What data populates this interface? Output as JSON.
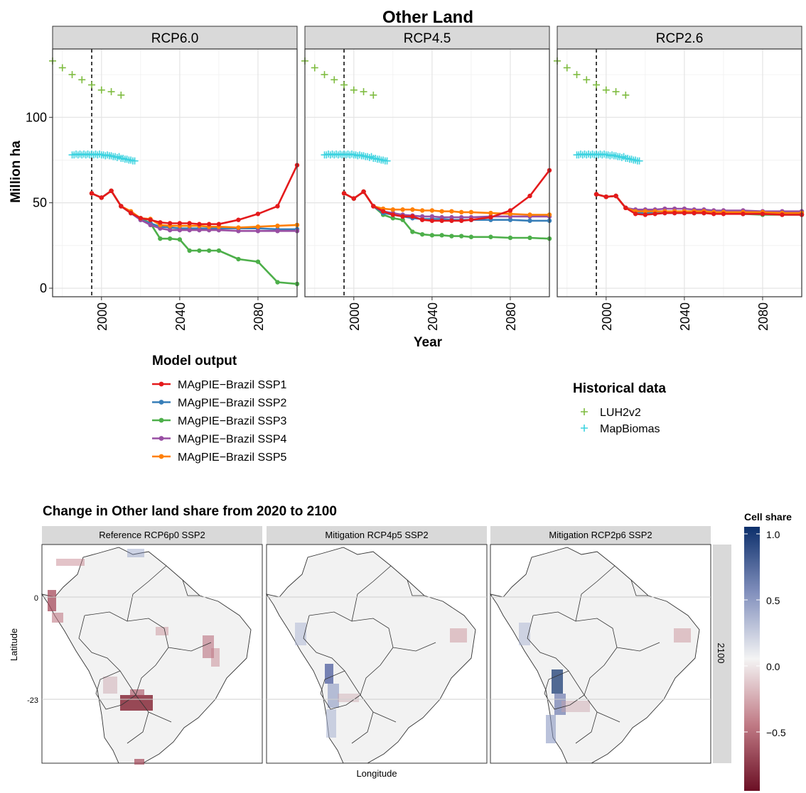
{
  "top": {
    "title": "Other Land",
    "xlabel": "Year",
    "ylabel": "Million ha",
    "legend_model_title": "Model output",
    "legend_hist_title": "Historical data"
  },
  "bottom": {
    "title": "Change in Other land share from 2020 to 2100",
    "xlabel": "Longitude",
    "ylabel": "Latitude",
    "row_strip": "2100",
    "y_ticks": [
      "0",
      "-23"
    ],
    "colorbar_title": "Cell share",
    "colorbar_ticks": [
      "1.0",
      "0.5",
      "0.0",
      "−0.5"
    ]
  },
  "colors": {
    "SSP1": "#e41a1c",
    "SSP2": "#377eb8",
    "SSP3": "#4daf4a",
    "SSP4": "#984ea3",
    "SSP5": "#ff7f00",
    "LUH2v2": "#7fbc41",
    "MapBiomas": "#3fd3e0",
    "map_neg": "#7f1d2d",
    "map_pos": "#0c2f6b"
  },
  "chart_data": [
    {
      "type": "line",
      "title": "Other Land",
      "xlabel": "Year",
      "ylabel": "Million ha",
      "xlim": [
        1975,
        2100
      ],
      "ylim": [
        -5,
        140
      ],
      "x_ticks": [
        2000,
        2040,
        2080
      ],
      "y_ticks": [
        0,
        50,
        100
      ],
      "reference_line_x": 1995,
      "grid": true,
      "facets": [
        "RCP6.0",
        "RCP4.5",
        "RCP2.6"
      ],
      "legend_groups": [
        {
          "title": "Model output",
          "entries": [
            "MAgPIE−Brazil SSP1",
            "MAgPIE−Brazil SSP2",
            "MAgPIE−Brazil SSP3",
            "MAgPIE−Brazil SSP4",
            "MAgPIE−Brazil SSP5"
          ]
        },
        {
          "title": "Historical data",
          "entries": [
            "LUH2v2",
            "MapBiomas"
          ]
        }
      ],
      "historical": {
        "LUH2v2": {
          "x": [
            1975,
            1980,
            1985,
            1990,
            1995,
            2000,
            2005,
            2010
          ],
          "y": [
            133,
            129,
            125,
            122,
            119,
            116,
            115,
            113
          ]
        },
        "MapBiomas": {
          "x": [
            1985,
            1986,
            1987,
            1988,
            1989,
            1990,
            1991,
            1992,
            1993,
            1994,
            1995,
            1996,
            1997,
            1998,
            1999,
            2000,
            2001,
            2002,
            2003,
            2004,
            2005,
            2006,
            2007,
            2008,
            2009,
            2010,
            2011,
            2012,
            2013,
            2014,
            2015,
            2016,
            2017
          ],
          "y": [
            78,
            78,
            78.5,
            78,
            78.5,
            78,
            78.5,
            78,
            78.5,
            78,
            78.5,
            78,
            78.5,
            78,
            78.5,
            78,
            78,
            77.5,
            78,
            77.5,
            77.5,
            77,
            77,
            76.5,
            77,
            76,
            76,
            75.5,
            75.5,
            75,
            75,
            74.5,
            74.5
          ]
        }
      },
      "panels": [
        {
          "name": "RCP6.0",
          "series": [
            {
              "name": "MAgPIE−Brazil SSP1",
              "color": "#e41a1c",
              "x": [
                1995,
                2000,
                2005,
                2010,
                2015,
                2020,
                2025,
                2030,
                2035,
                2040,
                2045,
                2050,
                2055,
                2060,
                2070,
                2080,
                2090,
                2100
              ],
              "y": [
                55.5,
                53,
                57,
                48,
                44,
                41,
                40,
                38.5,
                38,
                38,
                38,
                37.5,
                37.5,
                37.5,
                40,
                43.5,
                48,
                72
              ]
            },
            {
              "name": "MAgPIE−Brazil SSP2",
              "color": "#377eb8",
              "x": [
                1995,
                2000,
                2005,
                2010,
                2015,
                2020,
                2025,
                2030,
                2035,
                2040,
                2045,
                2050,
                2055,
                2060,
                2070,
                2080,
                2090,
                2100
              ],
              "y": [
                55.5,
                53,
                57,
                48,
                44,
                40,
                38,
                36,
                35.5,
                35,
                35,
                35,
                35,
                35,
                35,
                35,
                34.5,
                34.5
              ]
            },
            {
              "name": "MAgPIE−Brazil SSP3",
              "color": "#4daf4a",
              "x": [
                1995,
                2000,
                2005,
                2010,
                2015,
                2020,
                2025,
                2030,
                2035,
                2040,
                2045,
                2050,
                2055,
                2060,
                2070,
                2080,
                2090,
                2100
              ],
              "y": [
                55.5,
                53,
                57,
                48,
                44,
                41,
                38,
                29,
                29,
                28.5,
                22,
                22,
                22,
                22,
                17,
                15.5,
                3.5,
                2.5
              ]
            },
            {
              "name": "MAgPIE−Brazil SSP4",
              "color": "#984ea3",
              "x": [
                1995,
                2000,
                2005,
                2010,
                2015,
                2020,
                2025,
                2030,
                2035,
                2040,
                2045,
                2050,
                2055,
                2060,
                2070,
                2080,
                2090,
                2100
              ],
              "y": [
                55.5,
                53,
                57,
                48,
                44,
                40,
                37,
                35,
                34,
                34,
                34,
                34,
                34,
                34,
                33.5,
                33.5,
                33.5,
                33.5
              ]
            },
            {
              "name": "MAgPIE−Brazil SSP5",
              "color": "#ff7f00",
              "x": [
                1995,
                2000,
                2005,
                2010,
                2015,
                2020,
                2025,
                2030,
                2035,
                2040,
                2045,
                2050,
                2055,
                2060,
                2070,
                2080,
                2090,
                2100
              ],
              "y": [
                55.5,
                53,
                57,
                48,
                45,
                41,
                40.5,
                37,
                36.5,
                36.5,
                36.5,
                36.5,
                36,
                36,
                35.5,
                36,
                36.5,
                37
              ]
            }
          ]
        },
        {
          "name": "RCP4.5",
          "series": [
            {
              "name": "MAgPIE−Brazil SSP1",
              "color": "#e41a1c",
              "x": [
                1995,
                2000,
                2005,
                2010,
                2015,
                2020,
                2025,
                2030,
                2035,
                2040,
                2045,
                2050,
                2055,
                2060,
                2070,
                2080,
                2090,
                2100
              ],
              "y": [
                55.5,
                52.5,
                56.5,
                48,
                45,
                43,
                42,
                42,
                40,
                39.5,
                39.5,
                39.5,
                39.5,
                40,
                41.5,
                45.5,
                54,
                69
              ]
            },
            {
              "name": "MAgPIE−Brazil SSP2",
              "color": "#377eb8",
              "x": [
                1995,
                2000,
                2005,
                2010,
                2015,
                2020,
                2025,
                2030,
                2035,
                2040,
                2045,
                2050,
                2055,
                2060,
                2070,
                2080,
                2090,
                2100
              ],
              "y": [
                55.5,
                52.5,
                56.5,
                48,
                44,
                43,
                42,
                41,
                40.5,
                40.5,
                40.5,
                40,
                40,
                40,
                40,
                40,
                39.5,
                39.5
              ]
            },
            {
              "name": "MAgPIE−Brazil SSP3",
              "color": "#4daf4a",
              "x": [
                1995,
                2000,
                2005,
                2010,
                2015,
                2020,
                2025,
                2030,
                2035,
                2040,
                2045,
                2050,
                2055,
                2060,
                2070,
                2080,
                2090,
                2100
              ],
              "y": [
                55.5,
                52.5,
                56.5,
                48,
                43,
                41,
                40,
                33,
                31.5,
                31,
                31,
                30.5,
                30.5,
                30,
                30,
                29.5,
                29.5,
                29
              ]
            },
            {
              "name": "MAgPIE−Brazil SSP4",
              "color": "#984ea3",
              "x": [
                1995,
                2000,
                2005,
                2010,
                2015,
                2020,
                2025,
                2030,
                2035,
                2040,
                2045,
                2050,
                2055,
                2060,
                2070,
                2080,
                2090,
                2100
              ],
              "y": [
                55.5,
                52.5,
                56.5,
                48,
                45,
                44,
                43,
                42.5,
                42,
                42,
                41.5,
                41.5,
                41.5,
                41.5,
                42,
                42,
                42,
                42
              ]
            },
            {
              "name": "MAgPIE−Brazil SSP5",
              "color": "#ff7f00",
              "x": [
                1995,
                2000,
                2005,
                2010,
                2015,
                2020,
                2025,
                2030,
                2035,
                2040,
                2045,
                2050,
                2055,
                2060,
                2070,
                2080,
                2090,
                2100
              ],
              "y": [
                55.5,
                52.5,
                56.5,
                48,
                46.5,
                46,
                46,
                46,
                45.5,
                45.5,
                45,
                45,
                44.5,
                44.5,
                44,
                43.5,
                43,
                43
              ]
            }
          ]
        },
        {
          "name": "RCP2.6",
          "series": [
            {
              "name": "MAgPIE−Brazil SSP1",
              "color": "#e41a1c",
              "x": [
                1995,
                2000,
                2005,
                2010,
                2015,
                2020,
                2025,
                2030,
                2035,
                2040,
                2045,
                2050,
                2055,
                2060,
                2070,
                2080,
                2090,
                2100
              ],
              "y": [
                55,
                53.5,
                54,
                47,
                43.5,
                43,
                43.5,
                44,
                44,
                44,
                44,
                44,
                43.5,
                43.5,
                43.5,
                43.5,
                43,
                43
              ]
            },
            {
              "name": "MAgPIE−Brazil SSP2",
              "color": "#377eb8",
              "x": [
                1995,
                2000,
                2005,
                2010,
                2015,
                2020,
                2025,
                2030,
                2035,
                2040,
                2045,
                2050,
                2055,
                2060,
                2070,
                2080,
                2090,
                2100
              ],
              "y": [
                55,
                53.5,
                54,
                47,
                44,
                44,
                44,
                44,
                44,
                44,
                44,
                44,
                44,
                44,
                43.5,
                43.5,
                43.5,
                43
              ]
            },
            {
              "name": "MAgPIE−Brazil SSP3",
              "color": "#4daf4a",
              "x": [
                1995,
                2000,
                2005,
                2010,
                2015,
                2020,
                2025,
                2030,
                2035,
                2040,
                2045,
                2050,
                2055,
                2060,
                2070,
                2080,
                2090,
                2100
              ],
              "y": [
                55,
                53.5,
                54,
                47,
                44.5,
                44.5,
                44.5,
                44.5,
                44.5,
                44.5,
                44,
                44,
                44,
                44,
                43.5,
                43,
                43,
                43
              ]
            },
            {
              "name": "MAgPIE−Brazil SSP4",
              "color": "#984ea3",
              "x": [
                1995,
                2000,
                2005,
                2010,
                2015,
                2020,
                2025,
                2030,
                2035,
                2040,
                2045,
                2050,
                2055,
                2060,
                2070,
                2080,
                2090,
                2100
              ],
              "y": [
                55,
                53.5,
                54,
                47,
                46,
                46,
                46,
                46.5,
                46.5,
                46.5,
                46,
                46,
                45.5,
                45.5,
                45.5,
                45,
                45,
                45
              ]
            },
            {
              "name": "MAgPIE−Brazil SSP5",
              "color": "#ff7f00",
              "x": [
                1995,
                2000,
                2005,
                2010,
                2015,
                2020,
                2025,
                2030,
                2035,
                2040,
                2045,
                2050,
                2055,
                2060,
                2070,
                2080,
                2090,
                2100
              ],
              "y": [
                55,
                53.5,
                54,
                47,
                45,
                45,
                45,
                45,
                45,
                45,
                45,
                45,
                44.5,
                44.5,
                44.5,
                44.5,
                44,
                44
              ]
            }
          ]
        }
      ]
    },
    {
      "type": "heatmap",
      "title": "Change in Other land share from 2020 to 2100",
      "xlabel": "Longitude",
      "ylabel": "Latitude",
      "y_ticks": [
        0,
        -23
      ],
      "facets": [
        "Reference RCP6p0 SSP2",
        "Mitigation RCP4p5 SSP2",
        "Mitigation RCP2p6 SSP2"
      ],
      "row_facet": "2100",
      "colorbar": {
        "title": "Cell share",
        "range": [
          -0.9,
          1.1
        ],
        "ticks": [
          1.0,
          0.5,
          0.0,
          -0.5
        ]
      }
    }
  ]
}
